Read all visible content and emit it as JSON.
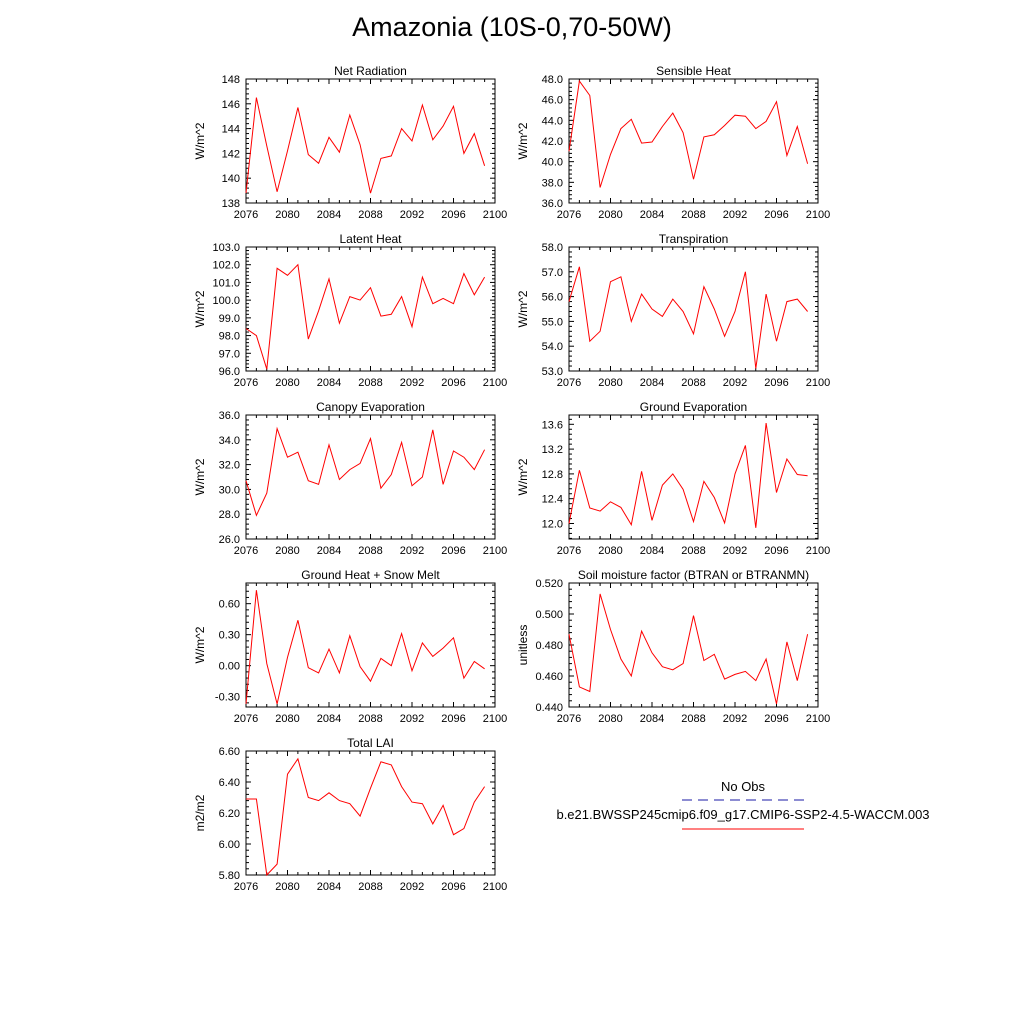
{
  "title": "Amazonia (10S-0,70-50W)",
  "colors": {
    "model": "#ff0000",
    "obs": "#1a1aa6",
    "axis": "#000000"
  },
  "legend": {
    "obs_label": "No Obs",
    "model_label": "b.e21.BWSSP245cmip6.f09_g17.CMIP6-SSP2-4.5-WACCM.003"
  },
  "chart_data": [
    {
      "type": "line",
      "title": "Net Radiation",
      "xlabel": "",
      "ylabel": "W/m^2",
      "xlim": [
        2076,
        2100
      ],
      "ylim": [
        138,
        148
      ],
      "xticks": [
        "2076",
        "2080",
        "2084",
        "2088",
        "2092",
        "2096",
        "2100"
      ],
      "yticks": [
        "138",
        "140",
        "142",
        "144",
        "146",
        "148"
      ],
      "ytick_values": [
        138,
        140,
        142,
        144,
        146,
        148
      ],
      "x": [
        2076,
        2077,
        2078,
        2079,
        2080,
        2081,
        2082,
        2083,
        2084,
        2085,
        2086,
        2087,
        2088,
        2089,
        2090,
        2091,
        2092,
        2093,
        2094,
        2095,
        2096,
        2097,
        2098,
        2099
      ],
      "series": [
        {
          "values": [
            138.8,
            146.5,
            142.6,
            138.9,
            142.2,
            145.7,
            141.9,
            141.2,
            143.3,
            142.1,
            145.1,
            142.7,
            138.8,
            141.6,
            141.8,
            144.0,
            143.0,
            145.9,
            143.1,
            144.2,
            145.8,
            142.0,
            143.6,
            141.0
          ]
        }
      ]
    },
    {
      "type": "line",
      "title": "Sensible Heat",
      "xlabel": "",
      "ylabel": "W/m^2",
      "xlim": [
        2076,
        2100
      ],
      "ylim": [
        36,
        48
      ],
      "xticks": [
        "2076",
        "2080",
        "2084",
        "2088",
        "2092",
        "2096",
        "2100"
      ],
      "yticks": [
        "36.0",
        "38.0",
        "40.0",
        "42.0",
        "44.0",
        "46.0",
        "48.0"
      ],
      "ytick_values": [
        36,
        38,
        40,
        42,
        44,
        46,
        48
      ],
      "x": [
        2076,
        2077,
        2078,
        2079,
        2080,
        2081,
        2082,
        2083,
        2084,
        2085,
        2086,
        2087,
        2088,
        2089,
        2090,
        2091,
        2092,
        2093,
        2094,
        2095,
        2096,
        2097,
        2098,
        2099
      ],
      "series": [
        {
          "values": [
            41.0,
            47.8,
            46.4,
            37.5,
            40.7,
            43.2,
            44.1,
            41.8,
            41.9,
            43.4,
            44.7,
            42.8,
            38.3,
            42.4,
            42.6,
            43.5,
            44.5,
            44.4,
            43.2,
            43.9,
            45.8,
            40.6,
            43.4,
            39.8
          ]
        }
      ]
    },
    {
      "type": "line",
      "title": "Latent Heat",
      "xlabel": "",
      "ylabel": "W/m^2",
      "xlim": [
        2076,
        2100
      ],
      "ylim": [
        96,
        103
      ],
      "xticks": [
        "2076",
        "2080",
        "2084",
        "2088",
        "2092",
        "2096",
        "2100"
      ],
      "yticks": [
        "96.0",
        "97.0",
        "98.0",
        "99.0",
        "100.0",
        "101.0",
        "102.0",
        "103.0"
      ],
      "ytick_values": [
        96,
        97,
        98,
        99,
        100,
        101,
        102,
        103
      ],
      "x": [
        2076,
        2077,
        2078,
        2079,
        2080,
        2081,
        2082,
        2083,
        2084,
        2085,
        2086,
        2087,
        2088,
        2089,
        2090,
        2091,
        2092,
        2093,
        2094,
        2095,
        2096,
        2097,
        2098,
        2099
      ],
      "series": [
        {
          "values": [
            98.4,
            98.0,
            96.1,
            101.8,
            101.4,
            102.0,
            97.8,
            99.4,
            101.2,
            98.7,
            100.2,
            100.0,
            100.7,
            99.1,
            99.2,
            100.2,
            98.5,
            101.3,
            99.8,
            100.1,
            99.8,
            101.5,
            100.3,
            101.3
          ]
        }
      ]
    },
    {
      "type": "line",
      "title": "Transpiration",
      "xlabel": "",
      "ylabel": "W/m^2",
      "xlim": [
        2076,
        2100
      ],
      "ylim": [
        53,
        58
      ],
      "xticks": [
        "2076",
        "2080",
        "2084",
        "2088",
        "2092",
        "2096",
        "2100"
      ],
      "yticks": [
        "53.0",
        "54.0",
        "55.0",
        "56.0",
        "57.0",
        "58.0"
      ],
      "ytick_values": [
        53,
        54,
        55,
        56,
        57,
        58
      ],
      "x": [
        2076,
        2077,
        2078,
        2079,
        2080,
        2081,
        2082,
        2083,
        2084,
        2085,
        2086,
        2087,
        2088,
        2089,
        2090,
        2091,
        2092,
        2093,
        2094,
        2095,
        2096,
        2097,
        2098,
        2099
      ],
      "series": [
        {
          "values": [
            55.8,
            57.2,
            54.2,
            54.6,
            56.6,
            56.8,
            55.0,
            56.1,
            55.5,
            55.2,
            55.9,
            55.4,
            54.5,
            56.4,
            55.5,
            54.4,
            55.4,
            57.0,
            53.1,
            56.1,
            54.2,
            55.8,
            55.9,
            55.4
          ]
        }
      ]
    },
    {
      "type": "line",
      "title": "Canopy Evaporation",
      "xlabel": "",
      "ylabel": "W/m^2",
      "xlim": [
        2076,
        2100
      ],
      "ylim": [
        26,
        36
      ],
      "xticks": [
        "2076",
        "2080",
        "2084",
        "2088",
        "2092",
        "2096",
        "2100"
      ],
      "yticks": [
        "26.0",
        "28.0",
        "30.0",
        "32.0",
        "34.0",
        "36.0"
      ],
      "ytick_values": [
        26,
        28,
        30,
        32,
        34,
        36
      ],
      "x": [
        2076,
        2077,
        2078,
        2079,
        2080,
        2081,
        2082,
        2083,
        2084,
        2085,
        2086,
        2087,
        2088,
        2089,
        2090,
        2091,
        2092,
        2093,
        2094,
        2095,
        2096,
        2097,
        2098,
        2099
      ],
      "series": [
        {
          "values": [
            30.7,
            27.9,
            29.7,
            34.9,
            32.6,
            33.0,
            30.7,
            30.4,
            33.6,
            30.8,
            31.6,
            32.1,
            34.1,
            30.1,
            31.2,
            33.8,
            30.3,
            31.0,
            34.8,
            30.4,
            33.1,
            32.6,
            31.6,
            33.2
          ]
        }
      ]
    },
    {
      "type": "line",
      "title": "Ground Evaporation",
      "xlabel": "",
      "ylabel": "W/m^2",
      "xlim": [
        2076,
        2100
      ],
      "ylim": [
        11.75,
        13.75
      ],
      "xticks": [
        "2076",
        "2080",
        "2084",
        "2088",
        "2092",
        "2096",
        "2100"
      ],
      "yticks": [
        "12.0",
        "12.4",
        "12.8",
        "13.2",
        "13.6"
      ],
      "ytick_values": [
        12.0,
        12.4,
        12.8,
        13.2,
        13.6
      ],
      "x": [
        2076,
        2077,
        2078,
        2079,
        2080,
        2081,
        2082,
        2083,
        2084,
        2085,
        2086,
        2087,
        2088,
        2089,
        2090,
        2091,
        2092,
        2093,
        2094,
        2095,
        2096,
        2097,
        2098,
        2099
      ],
      "series": [
        {
          "values": [
            12.0,
            12.86,
            12.25,
            12.2,
            12.35,
            12.26,
            11.98,
            12.84,
            12.05,
            12.62,
            12.8,
            12.55,
            12.03,
            12.68,
            12.42,
            12.01,
            12.8,
            13.26,
            11.93,
            13.62,
            12.5,
            13.04,
            12.79,
            12.77
          ]
        }
      ]
    },
    {
      "type": "line",
      "title": "Ground Heat + Snow Melt",
      "xlabel": "",
      "ylabel": "W/m^2",
      "xlim": [
        2076,
        2100
      ],
      "ylim": [
        -0.4,
        0.8
      ],
      "xticks": [
        "2076",
        "2080",
        "2084",
        "2088",
        "2092",
        "2096",
        "2100"
      ],
      "yticks": [
        "-0.30",
        "0.00",
        "0.30",
        "0.60"
      ],
      "ytick_values": [
        -0.3,
        0.0,
        0.3,
        0.6
      ],
      "x": [
        2076,
        2077,
        2078,
        2079,
        2080,
        2081,
        2082,
        2083,
        2084,
        2085,
        2086,
        2087,
        2088,
        2089,
        2090,
        2091,
        2092,
        2093,
        2094,
        2095,
        2096,
        2097,
        2098,
        2099
      ],
      "series": [
        {
          "values": [
            -0.37,
            0.73,
            0.02,
            -0.37,
            0.08,
            0.44,
            -0.02,
            -0.07,
            0.16,
            -0.07,
            0.29,
            -0.01,
            -0.15,
            0.07,
            0.0,
            0.31,
            -0.05,
            0.22,
            0.09,
            0.17,
            0.27,
            -0.12,
            0.04,
            -0.03
          ]
        }
      ]
    },
    {
      "type": "line",
      "title": "Soil moisture factor (BTRAN or BTRANMN)",
      "xlabel": "",
      "ylabel": "unitless",
      "xlim": [
        2076,
        2100
      ],
      "ylim": [
        0.44,
        0.52
      ],
      "xticks": [
        "2076",
        "2080",
        "2084",
        "2088",
        "2092",
        "2096",
        "2100"
      ],
      "yticks": [
        "0.440",
        "0.460",
        "0.480",
        "0.500",
        "0.520"
      ],
      "ytick_values": [
        0.44,
        0.46,
        0.48,
        0.5,
        0.52
      ],
      "x": [
        2076,
        2077,
        2078,
        2079,
        2080,
        2081,
        2082,
        2083,
        2084,
        2085,
        2086,
        2087,
        2088,
        2089,
        2090,
        2091,
        2092,
        2093,
        2094,
        2095,
        2096,
        2097,
        2098,
        2099
      ],
      "series": [
        {
          "values": [
            0.487,
            0.453,
            0.45,
            0.513,
            0.49,
            0.471,
            0.46,
            0.489,
            0.475,
            0.466,
            0.464,
            0.468,
            0.499,
            0.47,
            0.474,
            0.458,
            0.461,
            0.463,
            0.457,
            0.471,
            0.442,
            0.482,
            0.457,
            0.487
          ]
        }
      ]
    },
    {
      "type": "line",
      "title": "Total LAI",
      "xlabel": "",
      "ylabel": "m2/m2",
      "xlim": [
        2076,
        2100
      ],
      "ylim": [
        5.8,
        6.6
      ],
      "xticks": [
        "2076",
        "2080",
        "2084",
        "2088",
        "2092",
        "2096",
        "2100"
      ],
      "yticks": [
        "5.80",
        "6.00",
        "6.20",
        "6.40",
        "6.60"
      ],
      "ytick_values": [
        5.8,
        6.0,
        6.2,
        6.4,
        6.6
      ],
      "x": [
        2076,
        2077,
        2078,
        2079,
        2080,
        2081,
        2082,
        2083,
        2084,
        2085,
        2086,
        2087,
        2088,
        2089,
        2090,
        2091,
        2092,
        2093,
        2094,
        2095,
        2096,
        2097,
        2098,
        2099
      ],
      "series": [
        {
          "values": [
            6.29,
            6.29,
            5.8,
            5.87,
            6.45,
            6.55,
            6.3,
            6.28,
            6.33,
            6.28,
            6.26,
            6.18,
            6.36,
            6.53,
            6.51,
            6.37,
            6.27,
            6.26,
            6.13,
            6.25,
            6.06,
            6.1,
            6.27,
            6.37
          ]
        }
      ]
    }
  ]
}
